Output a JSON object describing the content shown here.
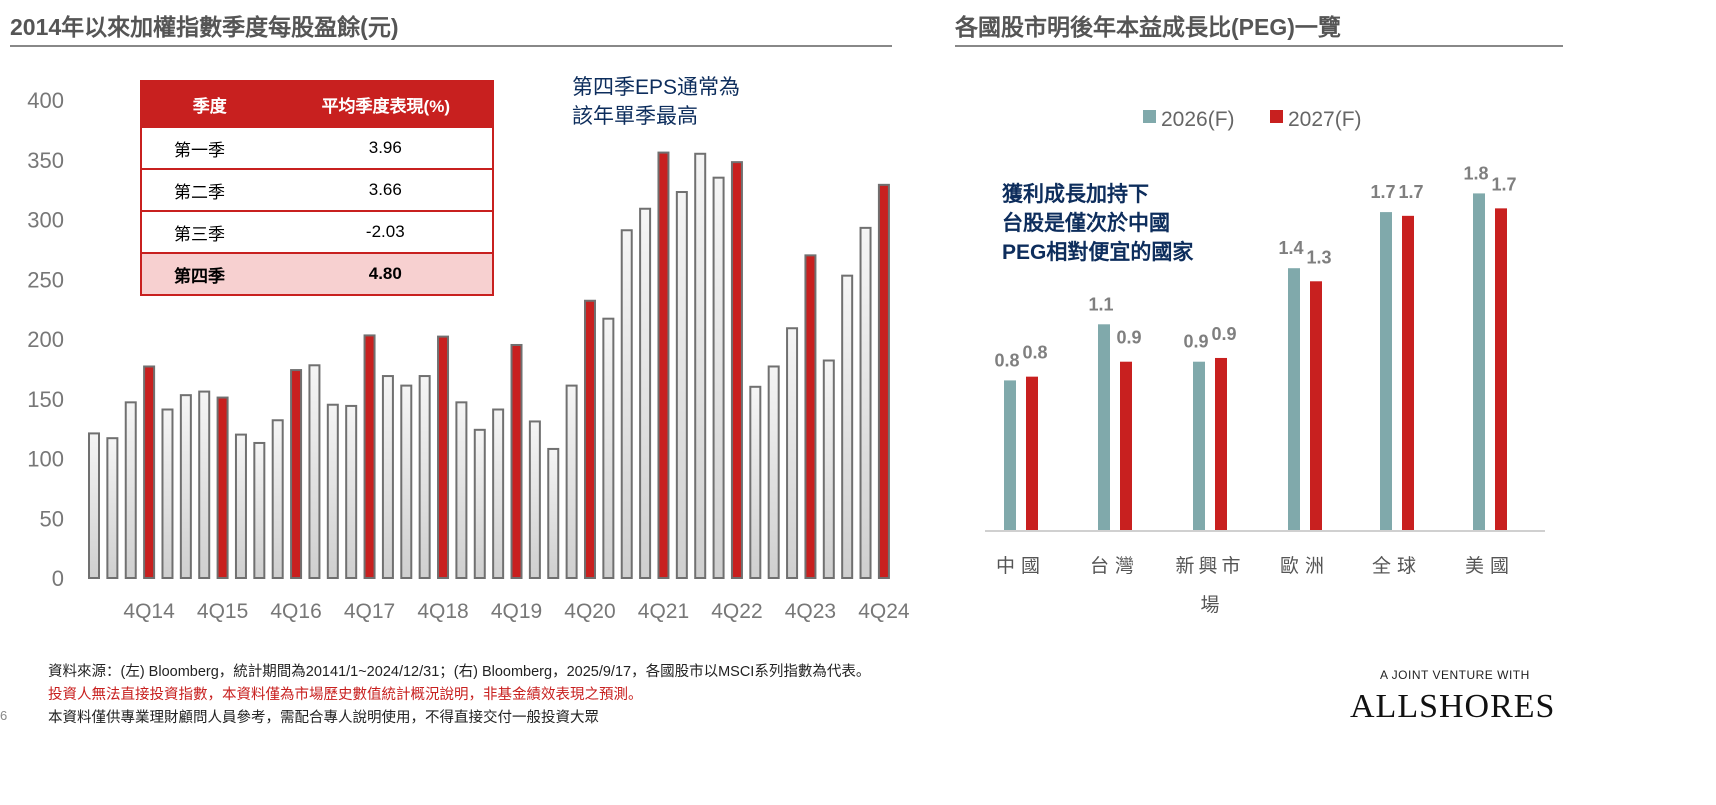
{
  "left": {
    "title": "2014年以來加權指數季度每股盈餘(元)",
    "table": {
      "headers": [
        "季度",
        "平均季度表現(%)"
      ],
      "rows": [
        {
          "quarter": "第一季",
          "value": "3.96"
        },
        {
          "quarter": "第二季",
          "value": "3.66"
        },
        {
          "quarter": "第三季",
          "value": "-2.03"
        },
        {
          "quarter": "第四季",
          "value": "4.80"
        }
      ]
    },
    "annotation": [
      "第四季EPS通常為",
      "該年單季最高"
    ]
  },
  "right": {
    "title": "各國股市明後年本益成長比(PEG)一覽",
    "annotation": [
      "獲利成長加持下",
      "台股是僅次於中國",
      "PEG相對便宜的國家"
    ]
  },
  "chart_data": [
    {
      "type": "bar",
      "title": "2014年以來加權指數季度每股盈餘(元)",
      "ylim": [
        0,
        400
      ],
      "yticks": [
        "0",
        "50",
        "100",
        "150",
        "200",
        "250",
        "300",
        "350",
        "400"
      ],
      "xtick_labels": [
        "4Q14",
        "4Q15",
        "4Q16",
        "4Q17",
        "4Q18",
        "4Q19",
        "4Q20",
        "4Q21",
        "4Q22",
        "4Q23",
        "4Q24"
      ],
      "highlight_color": "#c8201f",
      "base_color": "#e6e6e6",
      "quarters": [
        "1Q14",
        "2Q14",
        "3Q14",
        "4Q14",
        "1Q15",
        "2Q15",
        "3Q15",
        "4Q15",
        "1Q16",
        "2Q16",
        "3Q16",
        "4Q16",
        "1Q17",
        "2Q17",
        "3Q17",
        "4Q17",
        "1Q18",
        "2Q18",
        "3Q18",
        "4Q18",
        "1Q19",
        "2Q19",
        "3Q19",
        "4Q19",
        "1Q20",
        "2Q20",
        "3Q20",
        "4Q20",
        "1Q21",
        "2Q21",
        "3Q21",
        "4Q21",
        "1Q22",
        "2Q22",
        "3Q22",
        "4Q22",
        "1Q23",
        "2Q23",
        "3Q23",
        "4Q23",
        "1Q24",
        "2Q24",
        "3Q24",
        "4Q24"
      ],
      "values": [
        121,
        117,
        147,
        177,
        141,
        153,
        156,
        151,
        120,
        113,
        132,
        174,
        178,
        145,
        144,
        203,
        169,
        161,
        169,
        202,
        147,
        124,
        141,
        195,
        131,
        108,
        161,
        232,
        217,
        291,
        309,
        356,
        323,
        355,
        335,
        348,
        160,
        177,
        209,
        270,
        182,
        253,
        293,
        329
      ]
    },
    {
      "type": "bar",
      "title": "各國股市明後年本益成長比(PEG)一覽",
      "categories": [
        "中國",
        "台灣",
        "新興市場",
        "歐洲",
        "全球",
        "美國"
      ],
      "legend_position": "top",
      "series": [
        {
          "name": "2026(F)",
          "color": "#80a9ab",
          "values": [
            0.8,
            1.1,
            0.9,
            1.4,
            1.7,
            1.8
          ],
          "labels": [
            "0.8",
            "1.1",
            "0.9",
            "1.4",
            "1.7",
            "1.8"
          ]
        },
        {
          "name": "2027(F)",
          "color": "#c8201f",
          "values": [
            0.82,
            0.9,
            0.92,
            1.33,
            1.68,
            1.72
          ],
          "labels": [
            "0.8",
            "0.9",
            "0.9",
            "1.3",
            "1.7",
            "1.7"
          ]
        }
      ]
    }
  ],
  "footer": {
    "source": "資料來源：(左) Bloomberg，統計期間為20141/1~2024/12/31；(右) Bloomberg，2025/9/17，各國股市以MSCI系列指數為代表。",
    "disclaimer": "投資人無法直接投資指數，本資料僅為市場歷史數值統計概況說明，非基金績效表現之預測。",
    "notice": "本資料僅供專業理財顧問人員參考，需配合專人說明使用，不得直接交付一般投資大眾",
    "page": "6"
  },
  "logo": {
    "tagline": "A JOINT VENTURE WITH",
    "name": "ALLSHORES"
  }
}
